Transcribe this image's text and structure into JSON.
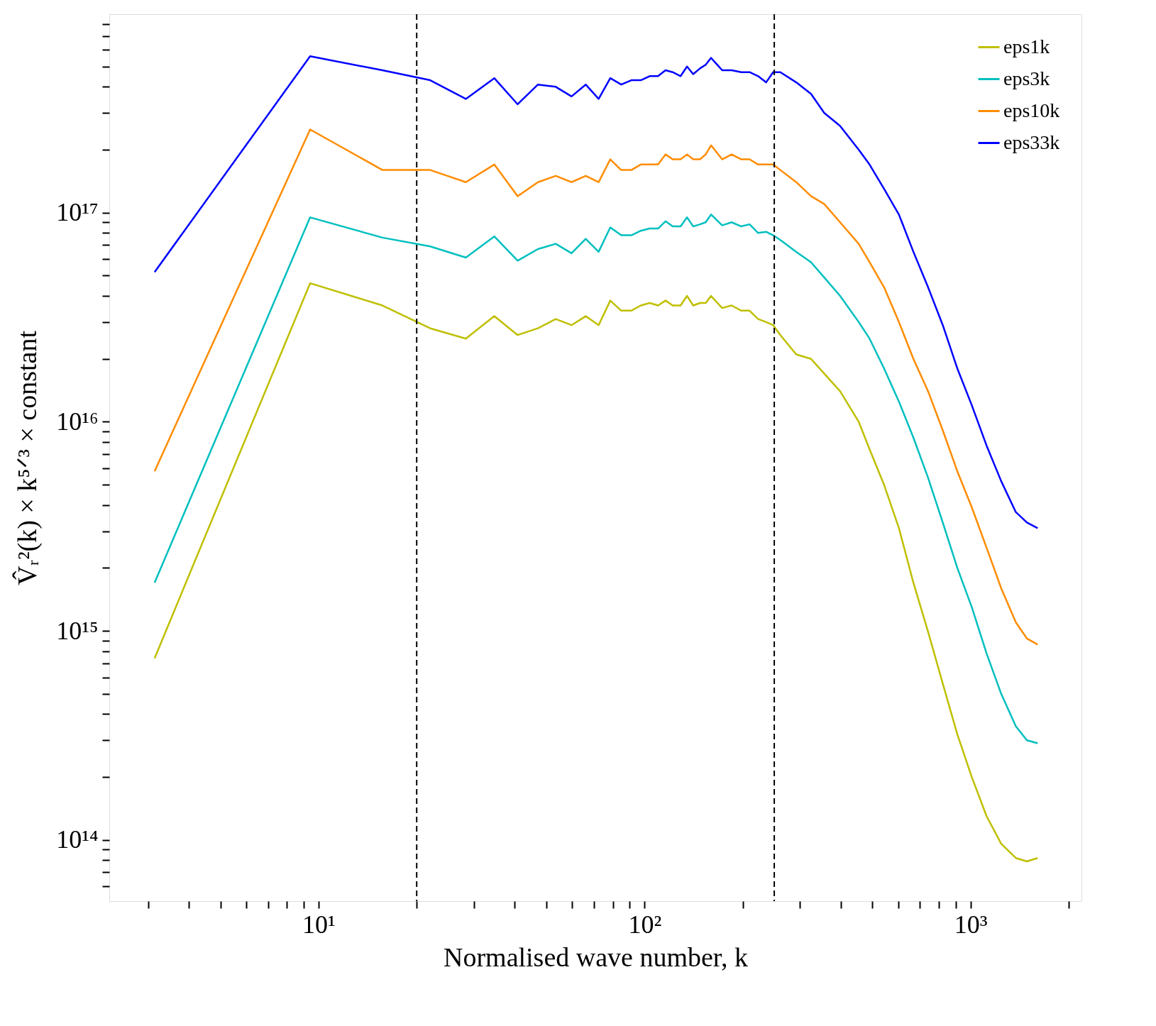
{
  "chart_data": {
    "type": "line",
    "xlabel": "Normalised wave number, k",
    "ylabel": "V̂ᵣ²(k) × k⁵ᐟ³ × constant",
    "log": "xy",
    "grid": false,
    "legend": "top right",
    "line_style": "solid",
    "marker": "none",
    "xlim": [
      2.28,
      2190
    ],
    "ylim": [
      51000000000000.0,
      8.9e+17
    ],
    "xticks": [
      {
        "value": 3,
        "label": null
      },
      {
        "value": 4,
        "label": null
      },
      {
        "value": 5,
        "label": null
      },
      {
        "value": 6,
        "label": null
      },
      {
        "value": 7,
        "label": null
      },
      {
        "value": 8,
        "label": null
      },
      {
        "value": 9,
        "label": null
      },
      {
        "value": 10,
        "label": "10¹"
      },
      {
        "value": 20,
        "label": null
      },
      {
        "value": 30,
        "label": null
      },
      {
        "value": 40,
        "label": null
      },
      {
        "value": 50,
        "label": null
      },
      {
        "value": 60,
        "label": null
      },
      {
        "value": 70,
        "label": null
      },
      {
        "value": 80,
        "label": null
      },
      {
        "value": 90,
        "label": null
      },
      {
        "value": 100,
        "label": "10²"
      },
      {
        "value": 200,
        "label": null
      },
      {
        "value": 300,
        "label": null
      },
      {
        "value": 400,
        "label": null
      },
      {
        "value": 500,
        "label": null
      },
      {
        "value": 600,
        "label": null
      },
      {
        "value": 700,
        "label": null
      },
      {
        "value": 800,
        "label": null
      },
      {
        "value": 900,
        "label": null
      },
      {
        "value": 1000,
        "label": "10³"
      },
      {
        "value": 2000,
        "label": null
      }
    ],
    "yticks": [
      {
        "value": 60000000000000.0,
        "label": null
      },
      {
        "value": 70000000000000.0,
        "label": null
      },
      {
        "value": 80000000000000.0,
        "label": null
      },
      {
        "value": 90000000000000.0,
        "label": null
      },
      {
        "value": 100000000000000.0,
        "label": "10¹⁴"
      },
      {
        "value": 200000000000000.0,
        "label": null
      },
      {
        "value": 300000000000000.0,
        "label": null
      },
      {
        "value": 400000000000000.0,
        "label": null
      },
      {
        "value": 500000000000000.0,
        "label": null
      },
      {
        "value": 600000000000000.0,
        "label": null
      },
      {
        "value": 700000000000000.0,
        "label": null
      },
      {
        "value": 800000000000000.0,
        "label": null
      },
      {
        "value": 900000000000000.0,
        "label": null
      },
      {
        "value": 1000000000000000.0,
        "label": "10¹⁵"
      },
      {
        "value": 2000000000000000.0,
        "label": null
      },
      {
        "value": 3000000000000000.0,
        "label": null
      },
      {
        "value": 4000000000000000.0,
        "label": null
      },
      {
        "value": 5000000000000000.0,
        "label": null
      },
      {
        "value": 6000000000000000.0,
        "label": null
      },
      {
        "value": 7000000000000000.0,
        "label": null
      },
      {
        "value": 8000000000000000.0,
        "label": null
      },
      {
        "value": 9000000000000000.0,
        "label": null
      },
      {
        "value": 1e+16,
        "label": "10¹⁶"
      },
      {
        "value": 2e+16,
        "label": null
      },
      {
        "value": 3e+16,
        "label": null
      },
      {
        "value": 4e+16,
        "label": null
      },
      {
        "value": 5e+16,
        "label": null
      },
      {
        "value": 6e+16,
        "label": null
      },
      {
        "value": 7e+16,
        "label": null
      },
      {
        "value": 8e+16,
        "label": null
      },
      {
        "value": 9e+16,
        "label": null
      },
      {
        "value": 1e+17,
        "label": "10¹⁷"
      },
      {
        "value": 2e+17,
        "label": null
      },
      {
        "value": 3e+17,
        "label": null
      },
      {
        "value": 4e+17,
        "label": null
      },
      {
        "value": 5e+17,
        "label": null
      },
      {
        "value": 6e+17,
        "label": null
      },
      {
        "value": 7e+17,
        "label": null
      },
      {
        "value": 8e+17,
        "label": null
      }
    ],
    "x": [
      3.14,
      9.42,
      15.7,
      22.0,
      28.3,
      34.6,
      40.8,
      47.1,
      53.4,
      59.7,
      66.0,
      72.3,
      78.5,
      84.8,
      91.1,
      97.4,
      103.7,
      110,
      116,
      122,
      129,
      135,
      141,
      148,
      154,
      160,
      173,
      185,
      198,
      210,
      223,
      236,
      248,
      261,
      292,
      324,
      356,
      398,
      454,
      490,
      543,
      603,
      668,
      741,
      822,
      911,
      1009,
      1120,
      1242,
      1377,
      1489,
      1607
    ],
    "series": [
      {
        "name": "eps1k",
        "color": "#bfbf00",
        "values": [
          740000000000000.0,
          4.6e+16,
          3.6e+16,
          2.8e+16,
          2.5e+16,
          3.2e+16,
          2.6e+16,
          2.8e+16,
          3.1e+16,
          2.9e+16,
          3.2e+16,
          2.9e+16,
          3.8e+16,
          3.4e+16,
          3.4e+16,
          3.6e+16,
          3.7e+16,
          3.6e+16,
          3.8e+16,
          3.6e+16,
          3.6e+16,
          4e+16,
          3.6e+16,
          3.7e+16,
          3.7e+16,
          4e+16,
          3.5e+16,
          3.6e+16,
          3.4e+16,
          3.4e+16,
          3.1e+16,
          3e+16,
          2.9e+16,
          2.6e+16,
          2.1e+16,
          2e+16,
          1.7e+16,
          1.4e+16,
          1e+16,
          7400000000000000.0,
          5000000000000000.0,
          3100000000000000.0,
          1700000000000000.0,
          990000000000000.0,
          560000000000000.0,
          320000000000000.0,
          200000000000000.0,
          130000000000000.0,
          96000000000000.0,
          82000000000000.0,
          79000000000000.0,
          82000000000000.0
        ]
      },
      {
        "name": "eps3k",
        "color": "#00bfbf",
        "values": [
          1700000000000000.0,
          9.5e+16,
          7.6e+16,
          6.9e+16,
          6.1e+16,
          7.7e+16,
          5.9e+16,
          6.7e+16,
          7.1e+16,
          6.4e+16,
          7.5e+16,
          6.5e+16,
          8.5e+16,
          7.8e+16,
          7.8e+16,
          8.2e+16,
          8.4e+16,
          8.4e+16,
          9.1e+16,
          8.6e+16,
          8.6e+16,
          9.5e+16,
          8.6e+16,
          8.8e+16,
          9e+16,
          9.8e+16,
          8.7e+16,
          9e+16,
          8.6e+16,
          8.8e+16,
          8e+16,
          8.1e+16,
          7.8e+16,
          7.4e+16,
          6.5e+16,
          5.8e+16,
          4.9e+16,
          4e+16,
          3e+16,
          2.5e+16,
          1.8e+16,
          1.25e+16,
          8400000000000000.0,
          5400000000000000.0,
          3300000000000000.0,
          2000000000000000.0,
          1300000000000000.0,
          780000000000000.0,
          500000000000000.0,
          350000000000000.0,
          300000000000000.0,
          290000000000000.0
        ]
      },
      {
        "name": "eps10k",
        "color": "#ff8c00",
        "values": [
          5800000000000000.0,
          2.5e+17,
          1.6e+17,
          1.6e+17,
          1.4e+17,
          1.7e+17,
          1.2e+17,
          1.4e+17,
          1.5e+17,
          1.4e+17,
          1.5e+17,
          1.4e+17,
          1.8e+17,
          1.6e+17,
          1.6e+17,
          1.7e+17,
          1.7e+17,
          1.7e+17,
          1.9e+17,
          1.8e+17,
          1.8e+17,
          1.9e+17,
          1.8e+17,
          1.8e+17,
          1.9e+17,
          2.1e+17,
          1.8e+17,
          1.9e+17,
          1.8e+17,
          1.8e+17,
          1.7e+17,
          1.7e+17,
          1.7e+17,
          1.6e+17,
          1.4e+17,
          1.2e+17,
          1.1e+17,
          9e+16,
          7.1e+16,
          5.8e+16,
          4.4e+16,
          3e+16,
          2e+16,
          1.4e+16,
          9100000000000000.0,
          5800000000000000.0,
          3900000000000000.0,
          2500000000000000.0,
          1600000000000000.0,
          1100000000000000.0,
          920000000000000.0,
          860000000000000.0
        ]
      },
      {
        "name": "eps33k",
        "color": "#0000ff",
        "values": [
          5.2e+16,
          5.6e+17,
          4.8e+17,
          4.3e+17,
          3.5e+17,
          4.4e+17,
          3.3e+17,
          4.1e+17,
          4e+17,
          3.6e+17,
          4.1e+17,
          3.5e+17,
          4.4e+17,
          4.1e+17,
          4.3e+17,
          4.3e+17,
          4.5e+17,
          4.5e+17,
          4.8e+17,
          4.7e+17,
          4.5e+17,
          5e+17,
          4.6e+17,
          4.9e+17,
          5.1e+17,
          5.5e+17,
          4.8e+17,
          4.8e+17,
          4.7e+17,
          4.7e+17,
          4.5e+17,
          4.2e+17,
          4.7e+17,
          4.7e+17,
          4.2e+17,
          3.7e+17,
          3e+17,
          2.6e+17,
          2e+17,
          1.7e+17,
          1.3e+17,
          9.8e+16,
          6.5e+16,
          4.4e+16,
          2.9e+16,
          1.8e+16,
          1.2e+16,
          7700000000000000.0,
          5200000000000000.0,
          3700000000000000.0,
          3300000000000000.0,
          3100000000000000.0
        ]
      }
    ],
    "ref_lines": [
      {
        "axis": "x",
        "value": 20,
        "color": "#000000",
        "line_style": "dashed"
      },
      {
        "axis": "x",
        "value": 250,
        "color": "#000000",
        "line_style": "dashed"
      }
    ]
  }
}
